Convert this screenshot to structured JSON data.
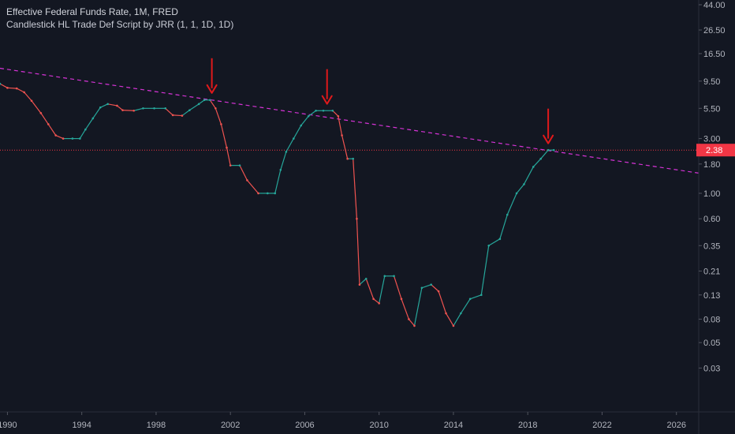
{
  "header": {
    "title": "Effective Federal Funds Rate, 1M, FRED",
    "subtitle": "Candlestick HL Trade Def Script by JRR (1, 1, 1D, 1D)"
  },
  "colors": {
    "background": "#131722",
    "up": "#26a69a",
    "down": "#ef5350",
    "trendline": "#d633d6",
    "price_line": "#f23645",
    "arrow": "#e0191b",
    "axis_text": "#b2b5be",
    "axis_line": "#2a2e39"
  },
  "chart_data": {
    "type": "line",
    "scale": "log",
    "ylim": [
      0.02,
      44.0
    ],
    "xlim": [
      1989.6,
      2027.2
    ],
    "x_ticks": [
      1990,
      1994,
      1998,
      2002,
      2006,
      2010,
      2014,
      2018,
      2022,
      2026
    ],
    "y_ticks": [
      "44.00",
      "26.50",
      "16.50",
      "9.50",
      "5.50",
      "3.00",
      "1.80",
      "1.00",
      "0.60",
      "0.35",
      "0.21",
      "0.13",
      "0.08",
      "0.05",
      "0.03"
    ],
    "last_price": "2.38",
    "grid": false,
    "series": [
      {
        "points": [
          [
            1989.6,
            9.0
          ],
          [
            1990.0,
            8.3
          ],
          [
            1990.5,
            8.2
          ],
          [
            1990.9,
            7.6
          ],
          [
            1991.3,
            6.4
          ],
          [
            1991.8,
            5.0
          ],
          [
            1992.2,
            4.0
          ],
          [
            1992.6,
            3.2
          ],
          [
            1993.0,
            3.0
          ],
          [
            1993.5,
            3.0
          ],
          [
            1993.9,
            3.0
          ],
          [
            1994.2,
            3.6
          ],
          [
            1994.6,
            4.5
          ],
          [
            1995.0,
            5.6
          ],
          [
            1995.4,
            6.0
          ],
          [
            1995.9,
            5.8
          ],
          [
            1996.2,
            5.3
          ],
          [
            1996.8,
            5.25
          ],
          [
            1997.3,
            5.5
          ],
          [
            1997.9,
            5.5
          ],
          [
            1998.5,
            5.5
          ],
          [
            1998.9,
            4.8
          ],
          [
            1999.4,
            4.75
          ],
          [
            1999.8,
            5.3
          ],
          [
            2000.3,
            6.0
          ],
          [
            2000.6,
            6.5
          ],
          [
            2000.9,
            6.5
          ],
          [
            2001.2,
            5.5
          ],
          [
            2001.5,
            4.0
          ],
          [
            2001.8,
            2.5
          ],
          [
            2002.0,
            1.75
          ],
          [
            2002.5,
            1.75
          ],
          [
            2002.9,
            1.3
          ],
          [
            2003.5,
            1.0
          ],
          [
            2004.0,
            1.0
          ],
          [
            2004.4,
            1.0
          ],
          [
            2004.7,
            1.6
          ],
          [
            2005.0,
            2.3
          ],
          [
            2005.4,
            3.0
          ],
          [
            2005.8,
            3.9
          ],
          [
            2006.2,
            4.7
          ],
          [
            2006.6,
            5.25
          ],
          [
            2007.0,
            5.25
          ],
          [
            2007.5,
            5.25
          ],
          [
            2007.8,
            4.7
          ],
          [
            2008.0,
            3.2
          ],
          [
            2008.3,
            2.0
          ],
          [
            2008.6,
            2.0
          ],
          [
            2008.8,
            0.6
          ],
          [
            2008.95,
            0.16
          ],
          [
            2009.3,
            0.18
          ],
          [
            2009.7,
            0.12
          ],
          [
            2010.0,
            0.11
          ],
          [
            2010.3,
            0.19
          ],
          [
            2010.8,
            0.19
          ],
          [
            2011.2,
            0.12
          ],
          [
            2011.6,
            0.08
          ],
          [
            2011.9,
            0.07
          ],
          [
            2012.3,
            0.15
          ],
          [
            2012.8,
            0.16
          ],
          [
            2013.2,
            0.14
          ],
          [
            2013.6,
            0.09
          ],
          [
            2014.0,
            0.07
          ],
          [
            2014.4,
            0.09
          ],
          [
            2014.9,
            0.12
          ],
          [
            2015.5,
            0.13
          ],
          [
            2015.9,
            0.35
          ],
          [
            2016.5,
            0.4
          ],
          [
            2016.9,
            0.65
          ],
          [
            2017.4,
            1.0
          ],
          [
            2017.8,
            1.2
          ],
          [
            2018.3,
            1.7
          ],
          [
            2018.7,
            2.0
          ],
          [
            2019.1,
            2.38
          ],
          [
            2019.4,
            2.38
          ]
        ]
      }
    ],
    "trendline": {
      "from": [
        1989.6,
        12.3
      ],
      "to": [
        2027.2,
        1.5
      ]
    },
    "price_line": 2.38,
    "annotations": [
      {
        "type": "arrow",
        "x": 2001.0,
        "y": 6.6
      },
      {
        "type": "arrow",
        "x": 2007.2,
        "y": 5.3
      },
      {
        "type": "arrow",
        "x": 2019.1,
        "y": 2.4
      }
    ]
  }
}
